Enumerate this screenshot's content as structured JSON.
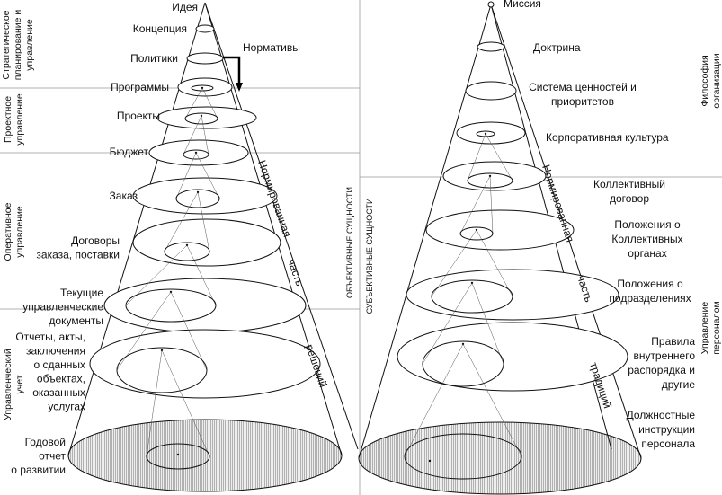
{
  "left": {
    "labels": [
      [
        "Идея"
      ],
      [
        "Концепция"
      ],
      [
        "Политики"
      ],
      [
        "Программы"
      ],
      [
        "Проекты"
      ],
      [
        "Бюджет"
      ],
      [
        "Заказ"
      ],
      [
        "Договоры",
        "заказа, поставки"
      ],
      [
        "Текущие",
        "управленческие",
        "документы"
      ],
      [
        "Отчеты, акты,",
        "заключения",
        "о сданных",
        "объектах,",
        "оказанных",
        "услугах"
      ],
      [
        "Годовой",
        "отчет",
        "о развитии"
      ]
    ],
    "zones": [
      [
        "Стратегическое",
        "планирование и",
        "управление"
      ],
      [
        "Проектное",
        "управление"
      ],
      [
        "Оперативное",
        "управление"
      ],
      [
        "Управленческий",
        "учет"
      ]
    ],
    "normatives": "Нормативы",
    "cone_text": [
      "Нормированная",
      "часть",
      "решений"
    ]
  },
  "center": {
    "objective": "ОБЪЕКТИВНЫЕ СУЩНОСТИ",
    "subjective": "СУБЪЕКТИВНЫЕ СУЩНОСТИ"
  },
  "right": {
    "labels": [
      [
        "Миссия"
      ],
      [
        "Доктрина"
      ],
      [
        "Система ценностей и",
        "приоритетов"
      ],
      [
        "Корпоративная культура"
      ],
      [
        "Коллективный",
        "договор"
      ],
      [
        "Положения о",
        "Коллективных",
        "органах"
      ],
      [
        "Положения о",
        "подразделениях"
      ],
      [
        "Правила",
        "внутреннего",
        "распорядка и",
        "другие"
      ],
      [
        "Должностные",
        "инструкции",
        "персонала"
      ]
    ],
    "zones": [
      [
        "Философия",
        "организации"
      ],
      [
        "Управление",
        "персоналом"
      ]
    ],
    "cone_text": [
      "Нормированная",
      "часть",
      "традиций"
    ]
  }
}
